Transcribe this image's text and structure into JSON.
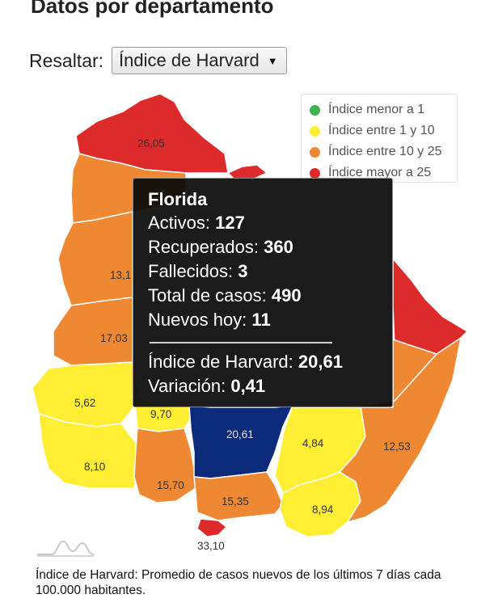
{
  "page_title": "Datos por departamento",
  "highlight": {
    "label": "Resaltar:",
    "selected": "Índice de Harvard"
  },
  "legend": [
    {
      "label": "Índice menor a 1",
      "color": "#3cb44b"
    },
    {
      "label": "Índice entre 1 y 10",
      "color": "#ffee33"
    },
    {
      "label": "Índice entre 10 y 25",
      "color": "#ee8833"
    },
    {
      "label": "Índice mayor a 25",
      "color": "#dd2a2a"
    }
  ],
  "departments": {
    "artigas": {
      "value": "26,05",
      "color": "#dd2a2a"
    },
    "salto": {
      "value": "",
      "color": "#ee8833"
    },
    "paysandu": {
      "value": "13,1",
      "color": "#ee8833"
    },
    "rio_negro": {
      "value": "17,03",
      "color": "#ee8833"
    },
    "soriano": {
      "value": "5,62",
      "color": "#ffee33"
    },
    "colonia": {
      "value": "8,10",
      "color": "#ffee33"
    },
    "flores": {
      "value": "9,70",
      "color": "#ffee33"
    },
    "san_jose": {
      "value": "15,70",
      "color": "#ee8833"
    },
    "florida": {
      "value": "20,61",
      "color": "#0b2a7a"
    },
    "canelones": {
      "value": "15,35",
      "color": "#ee8833"
    },
    "montevideo": {
      "value": "33,10",
      "color": "#dd2a2a"
    },
    "lavalleja": {
      "value": "4,84",
      "color": "#ffee33"
    },
    "maldonado": {
      "value": "8,94",
      "color": "#ffee33"
    },
    "rocha": {
      "value": "12,53",
      "color": "#ee8833"
    },
    "cerro_largo": {
      "value": "",
      "color": "#dd2a2a"
    },
    "rivera": {
      "value": "",
      "color": "#dd2a2a"
    },
    "center": {
      "value": "",
      "color": "#ee8833"
    }
  },
  "tooltip": {
    "title": "Florida",
    "activos_label": "Activos:",
    "activos_value": "127",
    "recuperados_label": "Recuperados:",
    "recuperados_value": "360",
    "fallecidos_label": "Fallecidos:",
    "fallecidos_value": "3",
    "total_label": "Total de casos:",
    "total_value": "490",
    "nuevos_label": "Nuevos hoy:",
    "nuevos_value": "11",
    "harvard_label": "Índice de Harvard:",
    "harvard_value": "20,61",
    "variacion_label": "Variación:",
    "variacion_value": "0,41"
  },
  "footnote": "Índice de Harvard: Promedio de casos nuevos de los últimos 7 días cada 100.000 habitantes."
}
